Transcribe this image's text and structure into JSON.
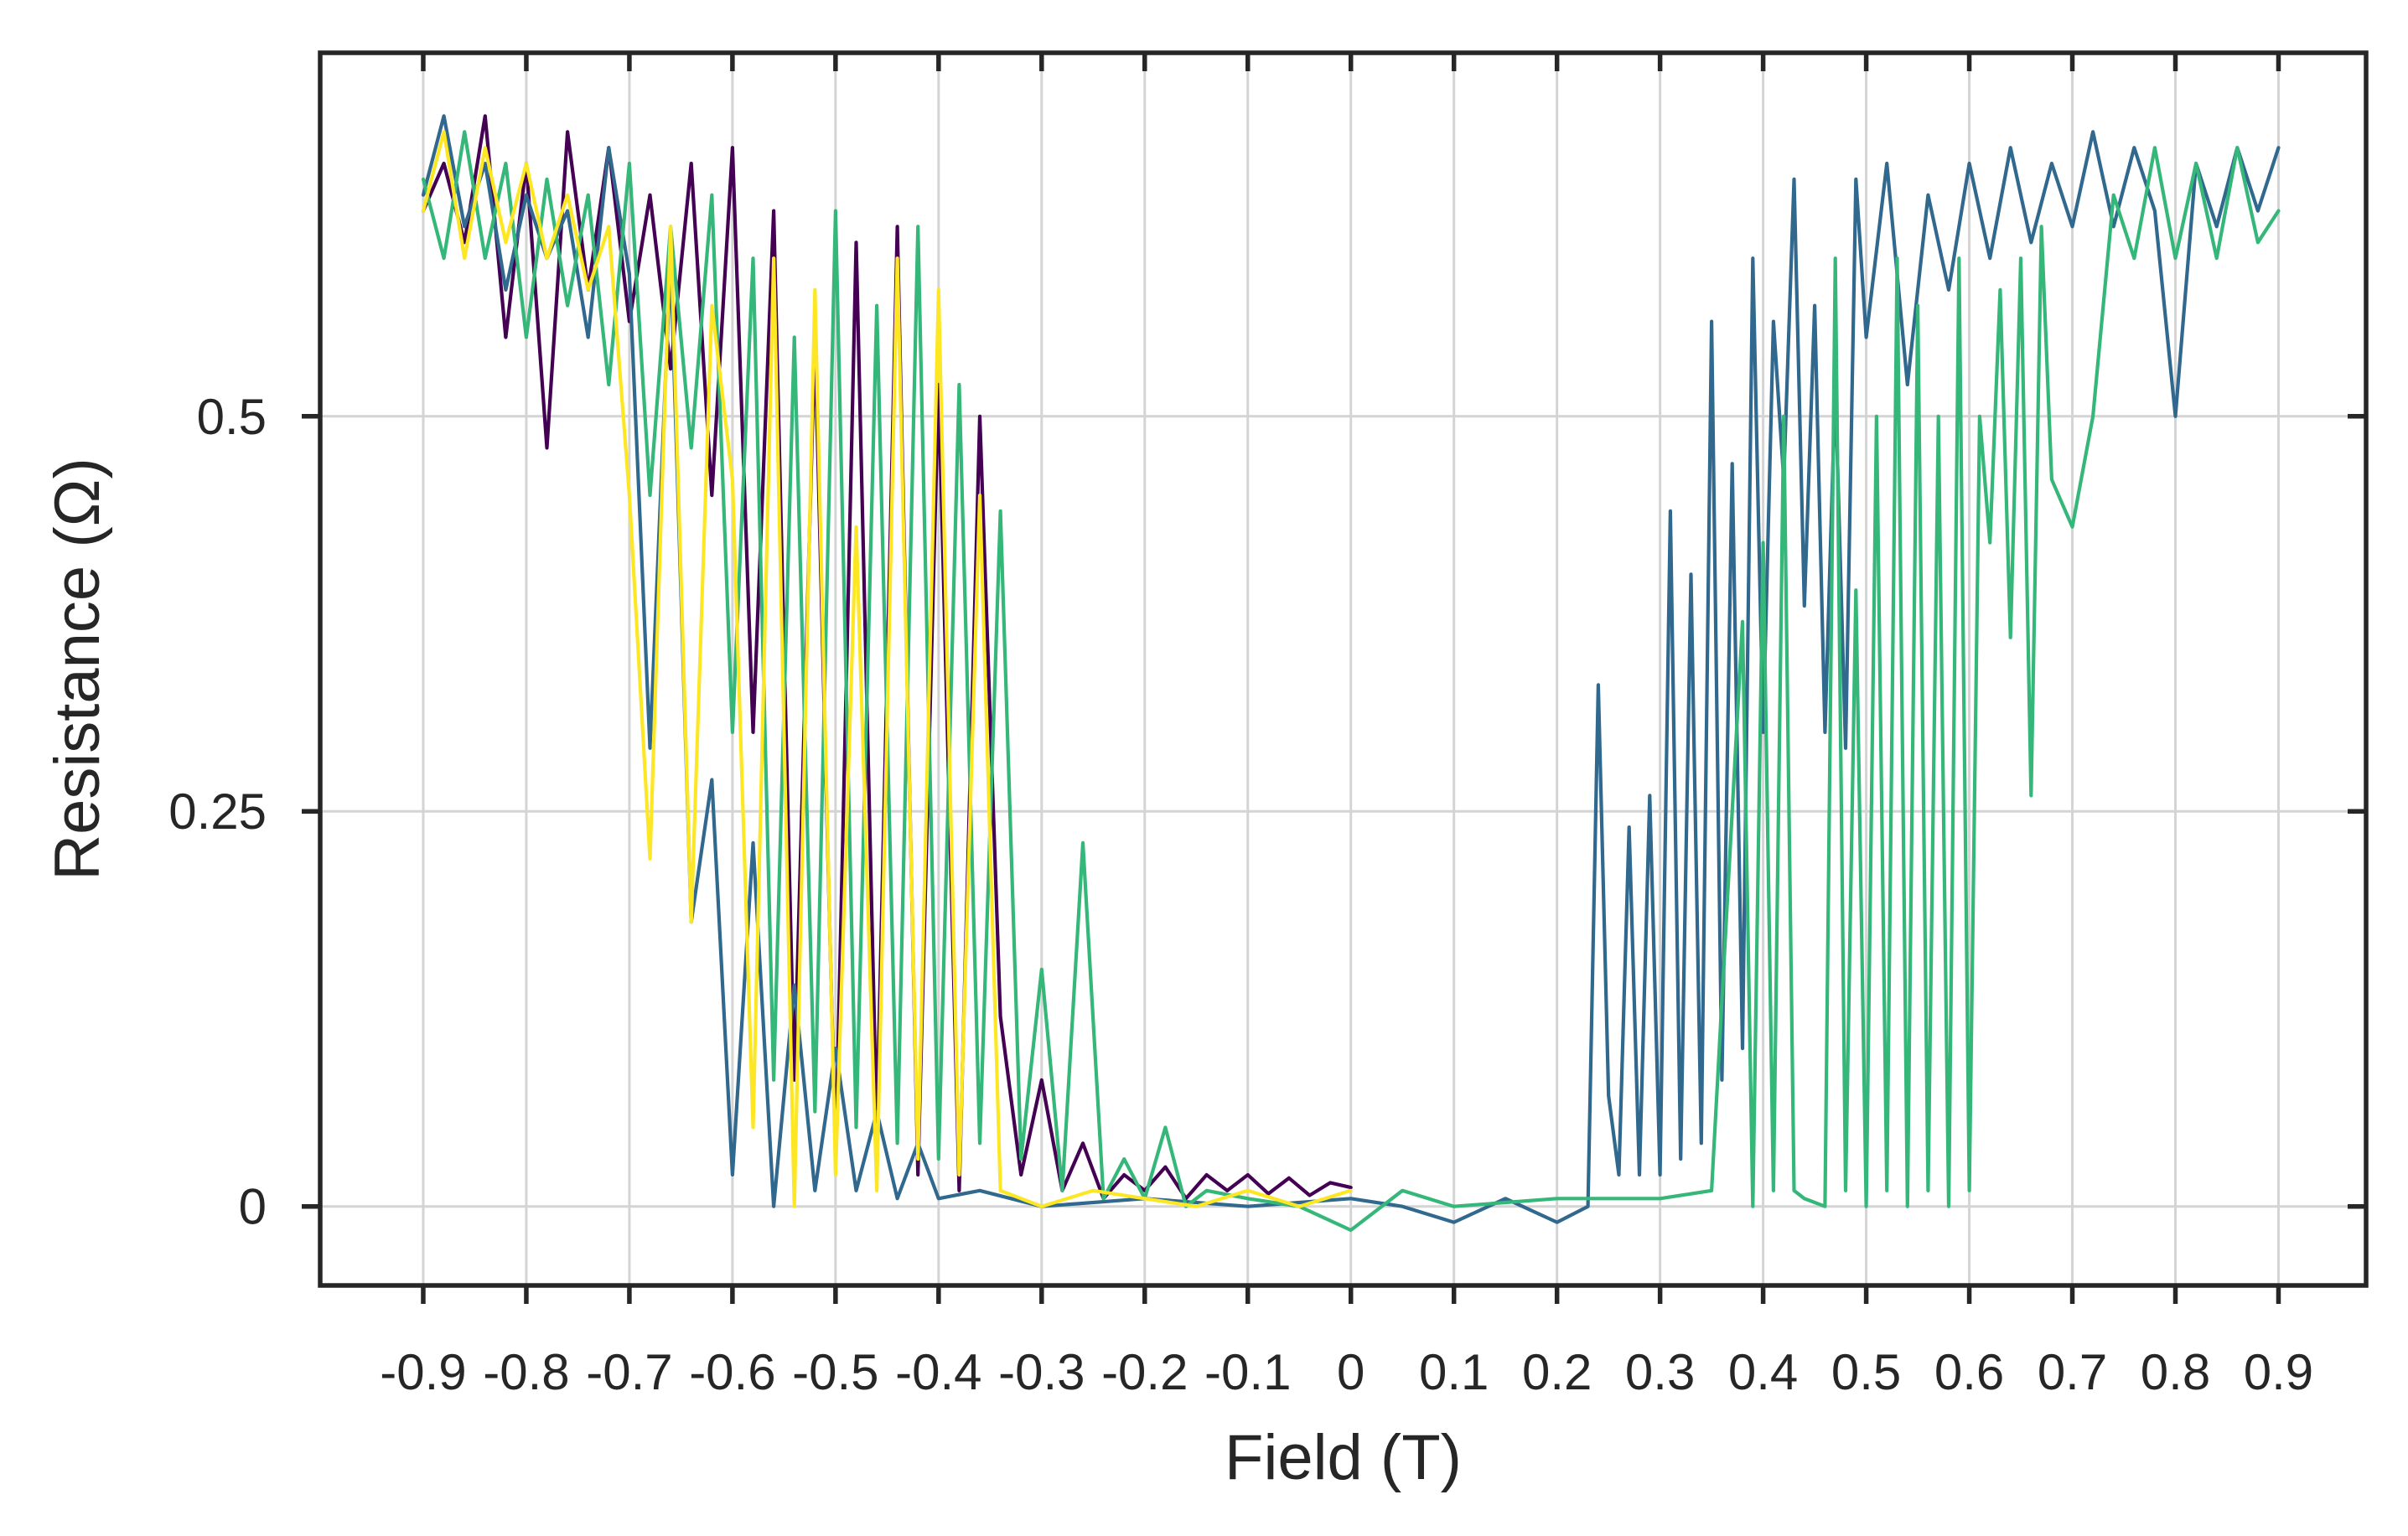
{
  "chart_data": {
    "type": "line",
    "title": "",
    "xlabel": "Field (T)",
    "ylabel": "Resistance (Ω)",
    "xlim": [
      -1.0,
      0.985
    ],
    "ylim": [
      -0.05,
      0.73
    ],
    "grid": true,
    "legend": "none",
    "xticks": [
      -0.9,
      -0.8,
      -0.7,
      -0.6,
      -0.5,
      -0.4,
      -0.3,
      -0.2,
      -0.1,
      0,
      0.1,
      0.2,
      0.3,
      0.4,
      0.5,
      0.6,
      0.7,
      0.8,
      0.9
    ],
    "xtick_labels": [
      "-0.9",
      "-0.8",
      "-0.7",
      "-0.6",
      "-0.5",
      "-0.4",
      "-0.3",
      "-0.2",
      "-0.1",
      "0",
      "0.1",
      "0.2",
      "0.3",
      "0.4",
      "0.5",
      "0.6",
      "0.7",
      "0.8",
      "0.9"
    ],
    "yticks": [
      0,
      0.25,
      0.5
    ],
    "ytick_labels": [
      "0",
      "0.25",
      "0.5"
    ],
    "series": [
      {
        "color": "#440154",
        "points": [
          [
            -0.9,
            0.63
          ],
          [
            -0.88,
            0.66
          ],
          [
            -0.86,
            0.61
          ],
          [
            -0.84,
            0.69
          ],
          [
            -0.82,
            0.55
          ],
          [
            -0.8,
            0.66
          ],
          [
            -0.78,
            0.48
          ],
          [
            -0.76,
            0.68
          ],
          [
            -0.74,
            0.58
          ],
          [
            -0.72,
            0.67
          ],
          [
            -0.7,
            0.56
          ],
          [
            -0.68,
            0.64
          ],
          [
            -0.66,
            0.53
          ],
          [
            -0.64,
            0.66
          ],
          [
            -0.62,
            0.45
          ],
          [
            -0.6,
            0.67
          ],
          [
            -0.58,
            0.3
          ],
          [
            -0.56,
            0.63
          ],
          [
            -0.54,
            0.08
          ],
          [
            -0.52,
            0.55
          ],
          [
            -0.5,
            0.03
          ],
          [
            -0.48,
            0.61
          ],
          [
            -0.46,
            0.05
          ],
          [
            -0.44,
            0.62
          ],
          [
            -0.42,
            0.02
          ],
          [
            -0.4,
            0.52
          ],
          [
            -0.38,
            0.01
          ],
          [
            -0.36,
            0.5
          ],
          [
            -0.34,
            0.12
          ],
          [
            -0.32,
            0.02
          ],
          [
            -0.3,
            0.08
          ],
          [
            -0.28,
            0.01
          ],
          [
            -0.26,
            0.04
          ],
          [
            -0.24,
            0.005
          ],
          [
            -0.22,
            0.02
          ],
          [
            -0.2,
            0.01
          ],
          [
            -0.18,
            0.025
          ],
          [
            -0.16,
            0.005
          ],
          [
            -0.14,
            0.02
          ],
          [
            -0.12,
            0.01
          ],
          [
            -0.1,
            0.02
          ],
          [
            -0.08,
            0.008
          ],
          [
            -0.06,
            0.018
          ],
          [
            -0.04,
            0.007
          ],
          [
            -0.02,
            0.015
          ],
          [
            0,
            0.012
          ]
        ]
      },
      {
        "color": "#31688e",
        "points": [
          [
            -0.9,
            0.64
          ],
          [
            -0.88,
            0.69
          ],
          [
            -0.86,
            0.62
          ],
          [
            -0.84,
            0.66
          ],
          [
            -0.82,
            0.58
          ],
          [
            -0.8,
            0.64
          ],
          [
            -0.78,
            0.6
          ],
          [
            -0.76,
            0.63
          ],
          [
            -0.74,
            0.55
          ],
          [
            -0.72,
            0.67
          ],
          [
            -0.7,
            0.59
          ],
          [
            -0.68,
            0.29
          ],
          [
            -0.66,
            0.6
          ],
          [
            -0.64,
            0.18
          ],
          [
            -0.62,
            0.27
          ],
          [
            -0.6,
            0.02
          ],
          [
            -0.58,
            0.23
          ],
          [
            -0.56,
            0.0
          ],
          [
            -0.54,
            0.14
          ],
          [
            -0.52,
            0.01
          ],
          [
            -0.5,
            0.1
          ],
          [
            -0.48,
            0.01
          ],
          [
            -0.46,
            0.06
          ],
          [
            -0.44,
            0.005
          ],
          [
            -0.42,
            0.04
          ],
          [
            -0.4,
            0.005
          ],
          [
            -0.36,
            0.01
          ],
          [
            -0.3,
            0.0
          ],
          [
            -0.2,
            0.005
          ],
          [
            -0.1,
            0.0
          ],
          [
            0,
            0.005
          ],
          [
            0.05,
            0.0
          ],
          [
            0.1,
            -0.01
          ],
          [
            0.15,
            0.005
          ],
          [
            0.2,
            -0.01
          ],
          [
            0.23,
            0.0
          ],
          [
            0.24,
            0.33
          ],
          [
            0.25,
            0.07
          ],
          [
            0.26,
            0.02
          ],
          [
            0.27,
            0.24
          ],
          [
            0.28,
            0.02
          ],
          [
            0.29,
            0.26
          ],
          [
            0.3,
            0.02
          ],
          [
            0.31,
            0.44
          ],
          [
            0.32,
            0.03
          ],
          [
            0.33,
            0.4
          ],
          [
            0.34,
            0.04
          ],
          [
            0.35,
            0.56
          ],
          [
            0.36,
            0.08
          ],
          [
            0.37,
            0.47
          ],
          [
            0.38,
            0.1
          ],
          [
            0.39,
            0.6
          ],
          [
            0.4,
            0.3
          ],
          [
            0.41,
            0.56
          ],
          [
            0.42,
            0.46
          ],
          [
            0.43,
            0.65
          ],
          [
            0.44,
            0.38
          ],
          [
            0.45,
            0.57
          ],
          [
            0.46,
            0.3
          ],
          [
            0.47,
            0.52
          ],
          [
            0.48,
            0.29
          ],
          [
            0.49,
            0.65
          ],
          [
            0.5,
            0.55
          ],
          [
            0.52,
            0.66
          ],
          [
            0.54,
            0.52
          ],
          [
            0.56,
            0.64
          ],
          [
            0.58,
            0.58
          ],
          [
            0.6,
            0.66
          ],
          [
            0.62,
            0.6
          ],
          [
            0.64,
            0.67
          ],
          [
            0.66,
            0.61
          ],
          [
            0.68,
            0.66
          ],
          [
            0.7,
            0.62
          ],
          [
            0.72,
            0.68
          ],
          [
            0.74,
            0.62
          ],
          [
            0.76,
            0.67
          ],
          [
            0.78,
            0.63
          ],
          [
            0.8,
            0.5
          ],
          [
            0.82,
            0.66
          ],
          [
            0.84,
            0.62
          ],
          [
            0.86,
            0.67
          ],
          [
            0.88,
            0.63
          ],
          [
            0.9,
            0.67
          ]
        ]
      },
      {
        "color": "#35b779",
        "points": [
          [
            -0.9,
            0.65
          ],
          [
            -0.88,
            0.6
          ],
          [
            -0.86,
            0.68
          ],
          [
            -0.84,
            0.6
          ],
          [
            -0.82,
            0.66
          ],
          [
            -0.8,
            0.55
          ],
          [
            -0.78,
            0.65
          ],
          [
            -0.76,
            0.57
          ],
          [
            -0.74,
            0.64
          ],
          [
            -0.72,
            0.52
          ],
          [
            -0.7,
            0.66
          ],
          [
            -0.68,
            0.45
          ],
          [
            -0.66,
            0.62
          ],
          [
            -0.64,
            0.48
          ],
          [
            -0.62,
            0.64
          ],
          [
            -0.6,
            0.3
          ],
          [
            -0.58,
            0.6
          ],
          [
            -0.56,
            0.08
          ],
          [
            -0.54,
            0.55
          ],
          [
            -0.52,
            0.06
          ],
          [
            -0.5,
            0.63
          ],
          [
            -0.48,
            0.05
          ],
          [
            -0.46,
            0.57
          ],
          [
            -0.44,
            0.04
          ],
          [
            -0.42,
            0.62
          ],
          [
            -0.4,
            0.03
          ],
          [
            -0.38,
            0.52
          ],
          [
            -0.36,
            0.04
          ],
          [
            -0.34,
            0.44
          ],
          [
            -0.32,
            0.03
          ],
          [
            -0.3,
            0.15
          ],
          [
            -0.28,
            0.01
          ],
          [
            -0.26,
            0.23
          ],
          [
            -0.24,
            0.005
          ],
          [
            -0.22,
            0.03
          ],
          [
            -0.2,
            0.005
          ],
          [
            -0.18,
            0.05
          ],
          [
            -0.16,
            0.0
          ],
          [
            -0.14,
            0.01
          ],
          [
            -0.1,
            0.005
          ],
          [
            -0.05,
            0.0
          ],
          [
            0,
            -0.015
          ],
          [
            0.05,
            0.01
          ],
          [
            0.1,
            0.0
          ],
          [
            0.2,
            0.005
          ],
          [
            0.3,
            0.005
          ],
          [
            0.35,
            0.01
          ],
          [
            0.38,
            0.37
          ],
          [
            0.39,
            0.0
          ],
          [
            0.4,
            0.42
          ],
          [
            0.41,
            0.01
          ],
          [
            0.42,
            0.5
          ],
          [
            0.43,
            0.01
          ],
          [
            0.44,
            0.005
          ],
          [
            0.46,
            0.0
          ],
          [
            0.47,
            0.6
          ],
          [
            0.48,
            0.01
          ],
          [
            0.49,
            0.39
          ],
          [
            0.5,
            0.0
          ],
          [
            0.51,
            0.5
          ],
          [
            0.52,
            0.01
          ],
          [
            0.53,
            0.6
          ],
          [
            0.54,
            0.0
          ],
          [
            0.55,
            0.57
          ],
          [
            0.56,
            0.01
          ],
          [
            0.57,
            0.5
          ],
          [
            0.58,
            0.0
          ],
          [
            0.59,
            0.6
          ],
          [
            0.6,
            0.01
          ],
          [
            0.61,
            0.5
          ],
          [
            0.62,
            0.42
          ],
          [
            0.63,
            0.58
          ],
          [
            0.64,
            0.36
          ],
          [
            0.65,
            0.6
          ],
          [
            0.66,
            0.26
          ],
          [
            0.67,
            0.62
          ],
          [
            0.68,
            0.46
          ],
          [
            0.7,
            0.43
          ],
          [
            0.72,
            0.5
          ],
          [
            0.74,
            0.64
          ],
          [
            0.76,
            0.6
          ],
          [
            0.78,
            0.67
          ],
          [
            0.8,
            0.6
          ],
          [
            0.82,
            0.66
          ],
          [
            0.84,
            0.6
          ],
          [
            0.86,
            0.67
          ],
          [
            0.88,
            0.61
          ],
          [
            0.9,
            0.63
          ]
        ]
      },
      {
        "color": "#fde725",
        "points": [
          [
            -0.9,
            0.63
          ],
          [
            -0.88,
            0.68
          ],
          [
            -0.86,
            0.6
          ],
          [
            -0.84,
            0.67
          ],
          [
            -0.82,
            0.61
          ],
          [
            -0.8,
            0.66
          ],
          [
            -0.78,
            0.6
          ],
          [
            -0.76,
            0.64
          ],
          [
            -0.74,
            0.58
          ],
          [
            -0.72,
            0.62
          ],
          [
            -0.7,
            0.45
          ],
          [
            -0.68,
            0.22
          ],
          [
            -0.66,
            0.62
          ],
          [
            -0.64,
            0.18
          ],
          [
            -0.62,
            0.57
          ],
          [
            -0.6,
            0.46
          ],
          [
            -0.58,
            0.05
          ],
          [
            -0.56,
            0.6
          ],
          [
            -0.54,
            0.0
          ],
          [
            -0.52,
            0.58
          ],
          [
            -0.5,
            0.02
          ],
          [
            -0.48,
            0.43
          ],
          [
            -0.46,
            0.01
          ],
          [
            -0.44,
            0.6
          ],
          [
            -0.42,
            0.03
          ],
          [
            -0.4,
            0.58
          ],
          [
            -0.38,
            0.02
          ],
          [
            -0.36,
            0.45
          ],
          [
            -0.34,
            0.01
          ],
          [
            -0.3,
            0.0
          ],
          [
            -0.25,
            0.01
          ],
          [
            -0.2,
            0.005
          ],
          [
            -0.15,
            0.0
          ],
          [
            -0.1,
            0.01
          ],
          [
            -0.05,
            0.0
          ],
          [
            0,
            0.01
          ]
        ]
      }
    ]
  }
}
